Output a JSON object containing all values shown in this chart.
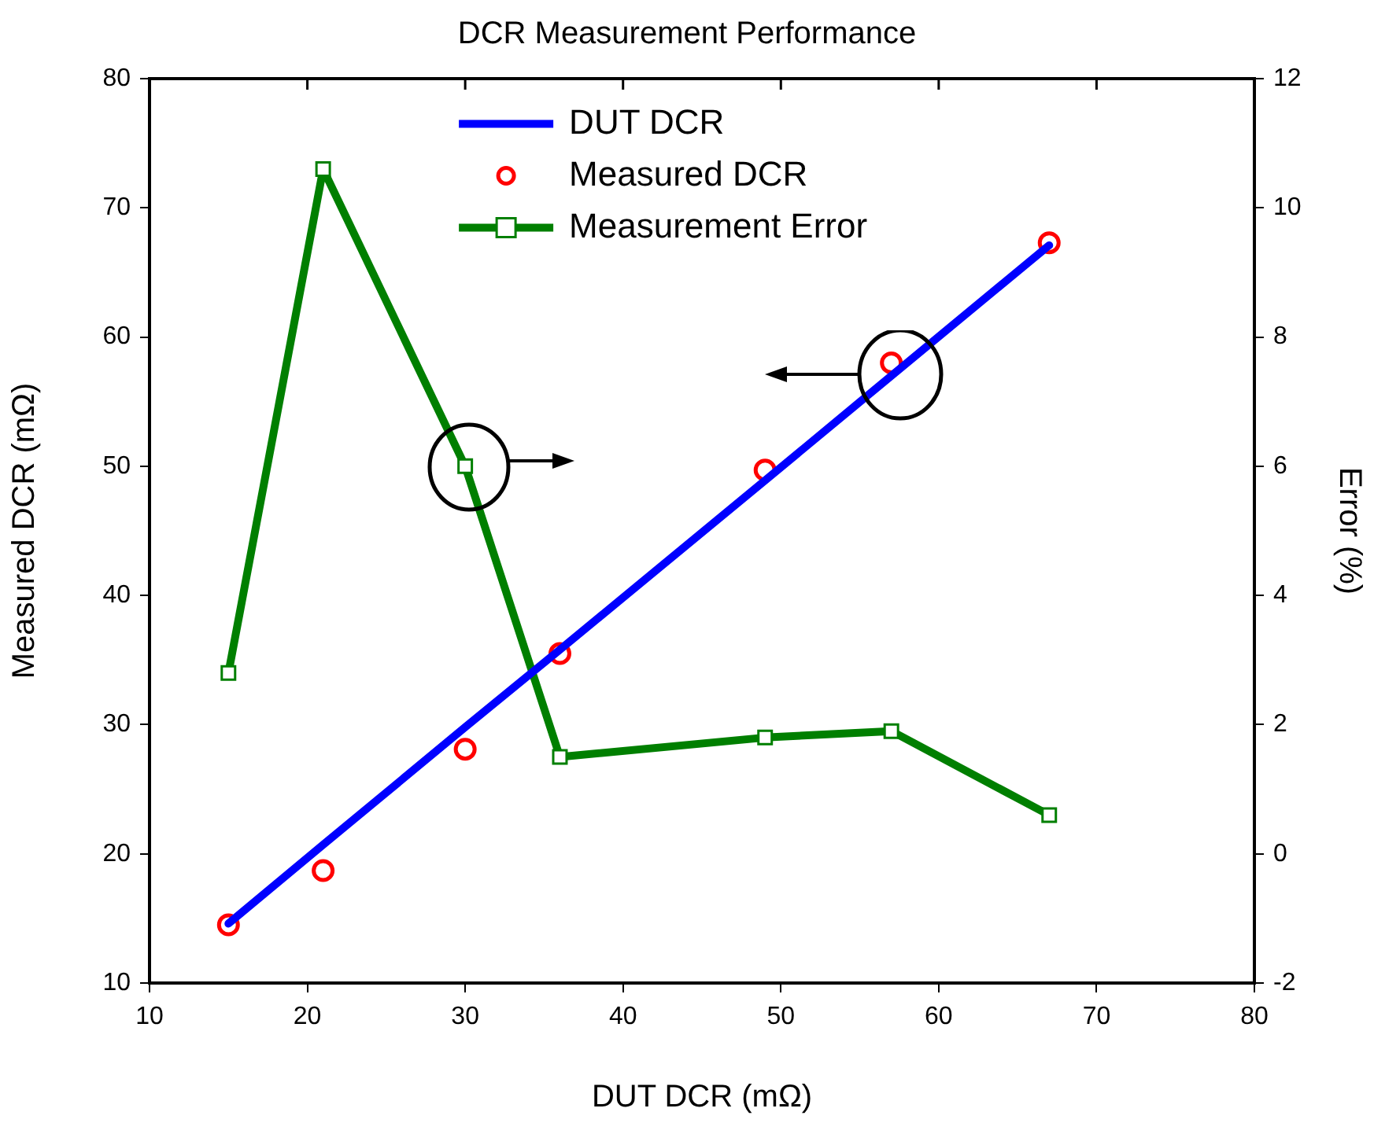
{
  "chart_data": {
    "type": "line",
    "title": "DCR Measurement Performance",
    "xlabel": "DUT DCR (mΩ)",
    "ylabel": "Measured DCR (mΩ)",
    "y2label": "Error (%)",
    "x": [
      15,
      21,
      30,
      36,
      49,
      57,
      67
    ],
    "xlim": [
      10,
      80
    ],
    "xticks": [
      10,
      20,
      30,
      40,
      50,
      60,
      70,
      80
    ],
    "ylim": [
      10,
      80
    ],
    "yticks": [
      10,
      20,
      30,
      40,
      50,
      60,
      70,
      80
    ],
    "y2lim": [
      -2,
      12
    ],
    "y2ticks": [
      -2,
      0,
      2,
      4,
      6,
      8,
      10,
      12
    ],
    "grid": false,
    "legend": "top",
    "series": [
      {
        "name": "DUT DCR",
        "type": "line",
        "color": "#0000ff",
        "marker": "none",
        "values": [
          14.6,
          20.7,
          29.8,
          35.8,
          48.9,
          57.0,
          67.1
        ]
      },
      {
        "name": "Measured DCR",
        "type": "scatter",
        "color": "#ff0000",
        "marker": "circle",
        "values": [
          14.5,
          18.7,
          28.1,
          35.5,
          49.7,
          58.0,
          67.3
        ]
      },
      {
        "name": "Measurement Error",
        "type": "line",
        "color": "#007f00",
        "marker": "square",
        "axis": "y2",
        "values": [
          2.8,
          10.6,
          6.0,
          1.5,
          1.8,
          1.9,
          0.6
        ]
      }
    ]
  }
}
